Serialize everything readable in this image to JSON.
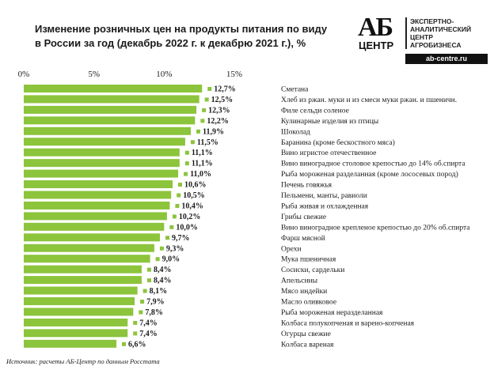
{
  "title_line1": "Изменение розничных цен на продукты питания по виду",
  "title_line2": "в России за год (декабрь 2022 г. к декабрю 2021 г.), %",
  "logo": {
    "ab": "АБ",
    "centr": "ЦЕНТР",
    "lines": [
      "ЭКСПЕРТНО-",
      "АНАЛИТИЧЕСКИЙ",
      "ЦЕНТР",
      "АГРОБИЗНЕСА"
    ],
    "url": "ab-centre.ru"
  },
  "source": "Источник: расчеты АБ-Центр по данным Росстата",
  "colors": {
    "bar": "#8cc43c",
    "marker": "#8cc43c",
    "text": "#1a1a1a"
  },
  "chart_data": {
    "type": "bar",
    "orientation": "horizontal",
    "xlim": [
      0,
      15
    ],
    "x_ticks": [
      "0%",
      "5%",
      "10%",
      "15%"
    ],
    "x_tick_values": [
      0,
      5,
      10,
      15
    ],
    "categories": [
      "Сметана",
      "Хлеб из ржан. муки и из смеси муки ржан. и пшеничн.",
      "Филе сельди соленое",
      "Кулинарные изделия из птицы",
      "Шоколад",
      "Баранина (кроме бескостного мяса)",
      "Вино игристое отечественное",
      "Вино виноградное столовое крепостью до 14% об.спирта",
      "Рыба мороженая разделанная (кроме лососевых пород)",
      "Печень говяжья",
      "Пельмени, манты, равиоли",
      "Рыба живая и охлажденная",
      "Грибы свежие",
      "Вино виноградное крепленое крепостью до 20% об.спирта",
      "Фарш мясной",
      "Орехи",
      "Мука пшеничная",
      "Сосиски, сардельки",
      "Апельсины",
      "Мясо индейки",
      "Масло оливковое",
      "Рыба мороженая неразделанная",
      "Колбаса полукопченая и варено-копченая",
      "Огурцы свежие",
      "Колбаса вареная"
    ],
    "values": [
      12.7,
      12.5,
      12.3,
      12.2,
      11.9,
      11.5,
      11.1,
      11.1,
      11.0,
      10.6,
      10.5,
      10.4,
      10.2,
      10.0,
      9.7,
      9.3,
      9.0,
      8.4,
      8.4,
      8.1,
      7.9,
      7.8,
      7.4,
      7.4,
      6.6
    ],
    "value_labels": [
      "12,7%",
      "12,5%",
      "12,3%",
      "12,2%",
      "11,9%",
      "11,5%",
      "11,1%",
      "11,1%",
      "11,0%",
      "10,6%",
      "10,5%",
      "10,4%",
      "10,2%",
      "10,0%",
      "9,7%",
      "9,3%",
      "9,0%",
      "8,4%",
      "8,4%",
      "8,1%",
      "7,9%",
      "7,8%",
      "7,4%",
      "7,4%",
      "6,6%"
    ],
    "grid": false
  }
}
